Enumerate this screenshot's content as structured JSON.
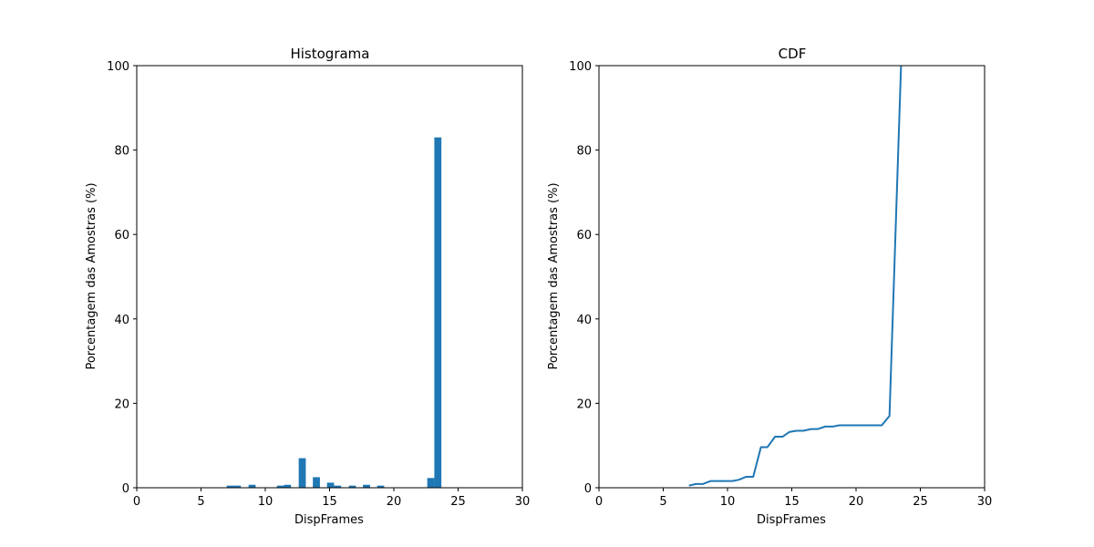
{
  "chart_data": [
    {
      "type": "bar",
      "title": "Histograma",
      "xlabel": "DispFrames",
      "ylabel": "Porcentagem das Amostras (%)",
      "xlim": [
        0,
        30
      ],
      "ylim": [
        0,
        100
      ],
      "xticks": [
        0,
        5,
        10,
        15,
        20,
        25,
        30
      ],
      "yticks": [
        0,
        20,
        40,
        60,
        80,
        100
      ],
      "grid": false,
      "color": "#1f77b4",
      "bin_width": 0.55,
      "bars": [
        {
          "x": 7.0,
          "y": 0.5
        },
        {
          "x": 7.55,
          "y": 0.5
        },
        {
          "x": 8.7,
          "y": 0.7
        },
        {
          "x": 10.9,
          "y": 0.5
        },
        {
          "x": 11.45,
          "y": 0.7
        },
        {
          "x": 12.6,
          "y": 7.0
        },
        {
          "x": 13.7,
          "y": 2.5
        },
        {
          "x": 14.8,
          "y": 1.2
        },
        {
          "x": 15.35,
          "y": 0.5
        },
        {
          "x": 16.5,
          "y": 0.5
        },
        {
          "x": 17.6,
          "y": 0.7
        },
        {
          "x": 18.7,
          "y": 0.5
        },
        {
          "x": 22.6,
          "y": 2.3
        },
        {
          "x": 23.15,
          "y": 83.0
        }
      ]
    },
    {
      "type": "line",
      "title": "CDF",
      "xlabel": "DispFrames",
      "ylabel": "Porcentagem das Amostras (%)",
      "xlim": [
        0,
        30
      ],
      "ylim": [
        0,
        100
      ],
      "xticks": [
        0,
        5,
        10,
        15,
        20,
        25,
        30
      ],
      "yticks": [
        0,
        20,
        40,
        60,
        80,
        100
      ],
      "grid": false,
      "color": "#1f77b4",
      "x": [
        7.0,
        7.55,
        8.1,
        8.7,
        9.2,
        9.8,
        10.4,
        10.9,
        11.45,
        12.0,
        12.6,
        13.1,
        13.7,
        14.3,
        14.8,
        15.35,
        15.9,
        16.5,
        17.0,
        17.6,
        18.2,
        18.7,
        19.3,
        19.9,
        22.0,
        22.6,
        23.5
      ],
      "y": [
        0.5,
        0.9,
        0.9,
        1.6,
        1.6,
        1.6,
        1.6,
        1.9,
        2.6,
        2.6,
        9.6,
        9.6,
        12.1,
        12.1,
        13.2,
        13.5,
        13.5,
        13.9,
        13.9,
        14.5,
        14.5,
        14.8,
        14.8,
        14.8,
        14.8,
        17.0,
        100.0
      ]
    }
  ]
}
